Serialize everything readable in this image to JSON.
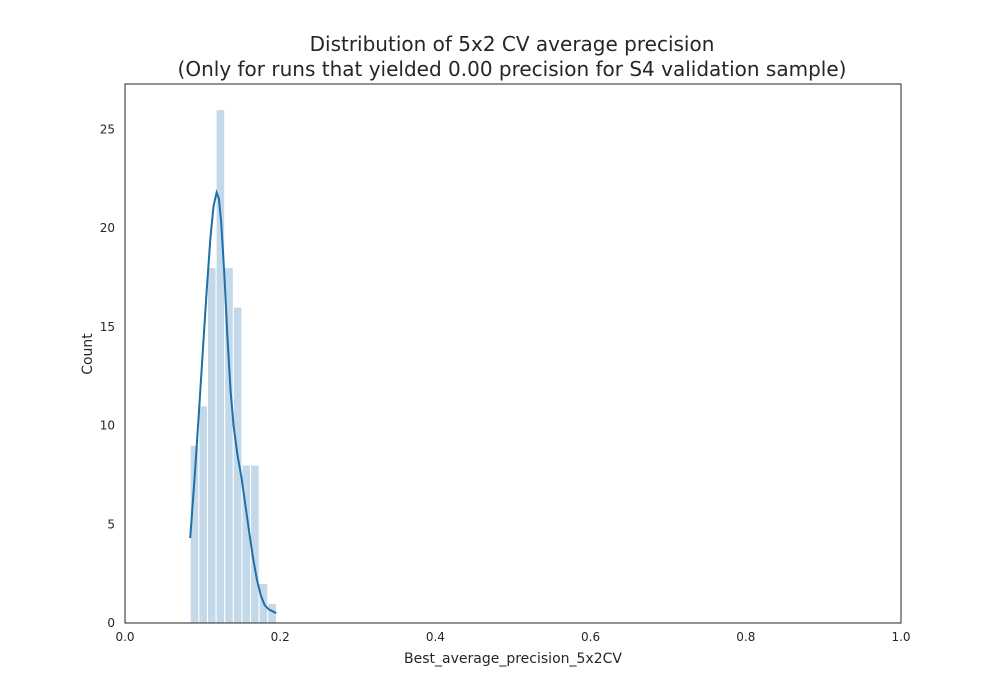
{
  "chart_data": {
    "type": "bar",
    "title_line1": "Distribution of 5x2 CV average precision",
    "title_line2": "(Only for runs that yielded 0.00 precision for S4 validation sample)",
    "xlabel": "Best_average_precision_5x2CV",
    "ylabel": "Count",
    "xlim": [
      0.0,
      1.0
    ],
    "ylim": [
      0,
      27.3
    ],
    "xticks": [
      "0.0",
      "0.2",
      "0.4",
      "0.6",
      "0.8",
      "1.0"
    ],
    "yticks": [
      "0",
      "5",
      "10",
      "15",
      "20",
      "25"
    ],
    "grid": false,
    "bin_width": 0.0111,
    "bins": [
      {
        "x0": 0.0841,
        "count": 9
      },
      {
        "x0": 0.0952,
        "count": 11
      },
      {
        "x0": 0.1063,
        "count": 18
      },
      {
        "x0": 0.1174,
        "count": 26
      },
      {
        "x0": 0.1285,
        "count": 18
      },
      {
        "x0": 0.1396,
        "count": 16
      },
      {
        "x0": 0.1507,
        "count": 8
      },
      {
        "x0": 0.1618,
        "count": 8
      },
      {
        "x0": 0.1729,
        "count": 2
      },
      {
        "x0": 0.184,
        "count": 1
      }
    ],
    "kde": {
      "x": [
        0.084,
        0.09,
        0.095,
        0.1,
        0.105,
        0.11,
        0.114,
        0.118,
        0.121,
        0.124,
        0.128,
        0.132,
        0.136,
        0.14,
        0.145,
        0.15,
        0.155,
        0.16,
        0.165,
        0.17,
        0.175,
        0.18,
        0.185,
        0.19,
        0.195
      ],
      "y": [
        4.3,
        7.5,
        10.5,
        13.6,
        16.7,
        19.5,
        21.1,
        21.8,
        21.5,
        20.3,
        17.7,
        14.5,
        11.8,
        10.0,
        8.5,
        7.4,
        6.0,
        4.6,
        3.3,
        2.2,
        1.4,
        0.9,
        0.7,
        0.6,
        0.5
      ]
    },
    "colors": {
      "bar": "#c3d9ea",
      "line": "#1f6fa8",
      "axis": "#262626"
    }
  }
}
